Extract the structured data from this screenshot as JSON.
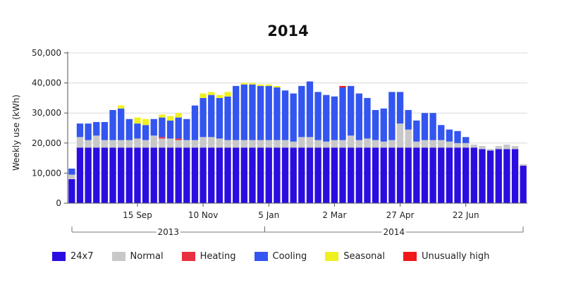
{
  "chart_data": {
    "type": "bar",
    "stacked": true,
    "title": "2014",
    "ylabel": "Weekly use (kWh)",
    "xlabel": "",
    "ylim": [
      0,
      50000
    ],
    "yticks": [
      0,
      10000,
      20000,
      30000,
      40000,
      50000
    ],
    "ytick_labels": [
      "0",
      "10,000",
      "20,000",
      "30,000",
      "40,000",
      "50,000"
    ],
    "grid": true,
    "legend_position": "bottom",
    "x_tick_labels": [
      {
        "label": "15 Sep",
        "index": 8
      },
      {
        "label": "10 Nov",
        "index": 16
      },
      {
        "label": "5 Jan",
        "index": 24
      },
      {
        "label": "2 Mar",
        "index": 32
      },
      {
        "label": "27 Apr",
        "index": 40
      },
      {
        "label": "22 Jun",
        "index": 48
      }
    ],
    "year_groups": [
      {
        "label": "2013",
        "start": 0,
        "end": 23
      },
      {
        "label": "2014",
        "start": 24,
        "end": 55
      }
    ],
    "series": [
      {
        "name": "24x7",
        "color": "#2a0ee0",
        "values": [
          8000,
          18500,
          18500,
          18500,
          18500,
          18500,
          18500,
          18500,
          18500,
          18500,
          18500,
          18500,
          18500,
          18500,
          18500,
          18500,
          18500,
          18500,
          18500,
          18500,
          18500,
          18500,
          18500,
          18500,
          18500,
          18500,
          18500,
          18500,
          18500,
          18500,
          18500,
          18500,
          18500,
          18500,
          18500,
          18500,
          18500,
          18500,
          18500,
          18500,
          18500,
          18500,
          18500,
          18500,
          18500,
          18500,
          18500,
          18500,
          18500,
          18500,
          18000,
          17500,
          18000,
          18000,
          18000,
          12500
        ]
      },
      {
        "name": "Normal",
        "color": "#c8c8c8",
        "values": [
          1500,
          3500,
          2500,
          4000,
          2500,
          2500,
          2500,
          2500,
          3000,
          2500,
          4000,
          3000,
          3000,
          2500,
          2500,
          2500,
          3500,
          3500,
          3000,
          2500,
          2500,
          2500,
          2500,
          2500,
          2500,
          2500,
          2500,
          2000,
          3500,
          3500,
          2500,
          2000,
          2500,
          2500,
          4000,
          2500,
          3000,
          2500,
          2000,
          2500,
          8000,
          6000,
          2000,
          2500,
          2500,
          2500,
          2000,
          1500,
          1500,
          1000,
          1000,
          500,
          1000,
          1500,
          1000,
          500
        ]
      },
      {
        "name": "Heating",
        "color": "#e83040",
        "values": [
          0,
          0,
          0,
          0,
          0,
          0,
          0,
          0,
          0,
          0,
          0,
          500,
          0,
          500,
          0,
          0,
          0,
          0,
          0,
          0,
          0,
          0,
          0,
          0,
          0,
          0,
          0,
          0,
          0,
          0,
          0,
          0,
          0,
          0,
          0,
          0,
          0,
          0,
          0,
          0,
          0,
          0,
          0,
          0,
          0,
          0,
          0,
          0,
          0,
          0,
          0,
          0,
          0,
          0,
          0,
          0
        ]
      },
      {
        "name": "Cooling",
        "color": "#3355f0",
        "values": [
          2000,
          4500,
          5500,
          4500,
          6000,
          10000,
          10500,
          7000,
          5000,
          5000,
          5500,
          6500,
          6000,
          7000,
          7000,
          11500,
          13000,
          14000,
          13500,
          14500,
          18000,
          18500,
          18500,
          18000,
          18000,
          17500,
          16500,
          16000,
          17000,
          18500,
          16000,
          15500,
          14500,
          17500,
          16500,
          15500,
          13500,
          10000,
          11000,
          16000,
          10500,
          6500,
          7000,
          9000,
          9000,
          5000,
          4000,
          4000,
          2000,
          0,
          0,
          0,
          0,
          0,
          0,
          0
        ]
      },
      {
        "name": "Seasonal",
        "color": "#f0f020",
        "values": [
          0,
          0,
          0,
          0,
          0,
          0,
          1000,
          0,
          2000,
          2000,
          0,
          1000,
          1500,
          1500,
          0,
          0,
          1500,
          1000,
          1000,
          1500,
          0,
          500,
          500,
          500,
          500,
          500,
          0,
          0,
          0,
          0,
          0,
          0,
          0,
          0,
          0,
          0,
          0,
          0,
          0,
          0,
          0,
          0,
          0,
          0,
          0,
          0,
          0,
          0,
          0,
          0,
          0,
          0,
          0,
          0,
          0,
          0
        ]
      },
      {
        "name": "Unusually high",
        "color": "#f01818",
        "values": [
          0,
          0,
          0,
          0,
          0,
          0,
          0,
          0,
          0,
          0,
          0,
          0,
          0,
          0,
          0,
          0,
          0,
          0,
          0,
          0,
          0,
          0,
          0,
          0,
          0,
          0,
          0,
          0,
          0,
          0,
          0,
          0,
          0,
          500,
          0,
          0,
          0,
          0,
          0,
          0,
          0,
          0,
          0,
          0,
          0,
          0,
          0,
          0,
          0,
          0,
          0,
          0,
          0,
          0,
          0,
          0
        ]
      }
    ]
  }
}
